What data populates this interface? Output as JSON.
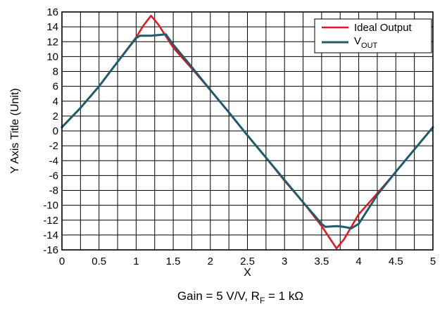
{
  "chart_data": {
    "type": "line",
    "xlabel": "X",
    "ylabel": "Y Axis Title (Unit)",
    "caption": {
      "text": "Gain = 5 V/V, R",
      "sub": "F",
      "tail": " = 1 kΩ"
    },
    "xlim": [
      0,
      5
    ],
    "ylim": [
      -16,
      16
    ],
    "x_ticks": [
      0,
      0.5,
      1,
      1.5,
      2,
      2.5,
      3,
      3.5,
      4,
      4.5,
      5
    ],
    "x_tick_labels": [
      "0",
      "0.5",
      "1",
      "1.5",
      "2",
      "2.5",
      "3",
      "3.5",
      "4",
      "4.5",
      "5"
    ],
    "y_ticks": [
      16,
      14,
      12,
      10,
      8,
      6,
      4,
      2,
      0,
      -2,
      -4,
      -6,
      -8,
      -10,
      -12,
      -14,
      -16
    ],
    "y_tick_labels": [
      "16",
      "14",
      "12",
      "10",
      "8",
      "6",
      "4",
      "2",
      "0",
      "-2",
      "-4",
      "-6",
      "-8",
      "-10",
      "-12",
      "-14",
      "-16"
    ],
    "x_grid_step": 0.25,
    "y_grid_step": 2,
    "grid": true,
    "legend_position": "top-right",
    "series": [
      {
        "name": "Ideal Output",
        "color": "#e8141c",
        "x": [
          0,
          0.25,
          0.5,
          0.75,
          1.0,
          1.1,
          1.2,
          1.3,
          1.5,
          1.75,
          2.0,
          2.25,
          2.5,
          2.75,
          3.0,
          3.25,
          3.5,
          3.6,
          3.7,
          3.8,
          4.0,
          4.25,
          4.5,
          4.75,
          5.0
        ],
        "y": [
          0.5,
          3.1,
          6.0,
          9.3,
          12.6,
          14.2,
          15.5,
          14.3,
          11.2,
          8.4,
          5.5,
          2.5,
          -0.6,
          -3.6,
          -6.7,
          -9.6,
          -12.8,
          -14.3,
          -15.8,
          -14.6,
          -11.2,
          -8.4,
          -5.5,
          -2.5,
          0.5
        ]
      },
      {
        "name": "VOUT",
        "name_main": "V",
        "name_sub": "OUT",
        "color": "#1f5c6b",
        "x": [
          0,
          0.25,
          0.5,
          0.75,
          1.0,
          1.05,
          1.2,
          1.3,
          1.4,
          1.5,
          1.75,
          2.0,
          2.25,
          2.5,
          2.75,
          3.0,
          3.25,
          3.5,
          3.55,
          3.7,
          3.8,
          3.9,
          4.0,
          4.25,
          4.5,
          4.75,
          5.0
        ],
        "y": [
          0.5,
          3.1,
          6.0,
          9.3,
          12.5,
          12.8,
          12.8,
          12.9,
          13.0,
          11.6,
          8.6,
          5.5,
          2.5,
          -0.6,
          -3.6,
          -6.6,
          -9.6,
          -12.5,
          -12.9,
          -12.8,
          -12.9,
          -13.1,
          -12.5,
          -8.6,
          -5.5,
          -2.5,
          0.5
        ]
      }
    ]
  }
}
